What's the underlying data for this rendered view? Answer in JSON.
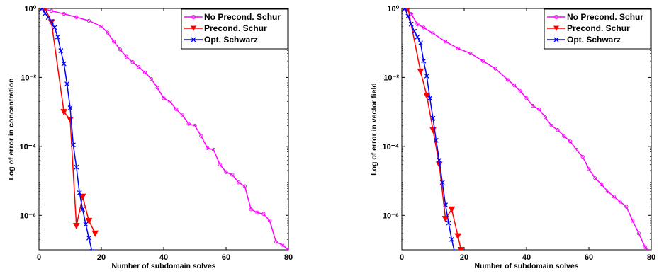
{
  "chart_data": [
    {
      "type": "line",
      "y_scale": "log",
      "xlim": [
        0,
        80
      ],
      "ylim": [
        1e-07,
        1
      ],
      "x_ticks": [
        0,
        20,
        40,
        60,
        80
      ],
      "y_ticks": [
        1,
        0.01,
        0.0001,
        1e-06
      ],
      "xlabel": "Number of subdomain solves",
      "ylabel": "Log of error in concentration",
      "legend_position": "top-right",
      "grid": false,
      "series": [
        {
          "name": "No Precond. Schur",
          "color": "#ff00ff",
          "marker": "circle",
          "points": [
            [
              1,
              1
            ],
            [
              4,
              0.85
            ],
            [
              8,
              0.7
            ],
            [
              12,
              0.56
            ],
            [
              16,
              0.44
            ],
            [
              20,
              0.3
            ],
            [
              22,
              0.2
            ],
            [
              24,
              0.11
            ],
            [
              26,
              0.065
            ],
            [
              28,
              0.04
            ],
            [
              30,
              0.028
            ],
            [
              32,
              0.02
            ],
            [
              34,
              0.014
            ],
            [
              36,
              0.009
            ],
            [
              38,
              0.005
            ],
            [
              40,
              0.0025
            ],
            [
              42,
              0.002
            ],
            [
              44,
              0.0012
            ],
            [
              46,
              0.0008
            ],
            [
              48,
              0.00045
            ],
            [
              50,
              0.0004
            ],
            [
              52,
              0.0002
            ],
            [
              54,
              9e-05
            ],
            [
              56,
              8e-05
            ],
            [
              58,
              3e-05
            ],
            [
              60,
              1.8e-05
            ],
            [
              62,
              1.5e-05
            ],
            [
              64,
              9e-06
            ],
            [
              66,
              7e-06
            ],
            [
              68,
              1.5e-06
            ],
            [
              70,
              1.2e-06
            ],
            [
              72,
              1.1e-06
            ],
            [
              74,
              7e-07
            ],
            [
              76,
              1.7e-07
            ],
            [
              78,
              1.4e-07
            ],
            [
              80,
              1e-07
            ]
          ]
        },
        {
          "name": "Precond. Schur",
          "color": "#ff0000",
          "marker": "triangle-down",
          "points": [
            [
              2,
              1
            ],
            [
              4,
              0.4
            ],
            [
              8,
              0.001
            ],
            [
              10,
              0.0006
            ],
            [
              12,
              5e-07
            ],
            [
              14,
              3.5e-06
            ],
            [
              16,
              7e-07
            ],
            [
              18,
              3e-07
            ]
          ]
        },
        {
          "name": "Opt. Schwarz",
          "color": "#0000ff",
          "marker": "x",
          "points": [
            [
              1,
              1
            ],
            [
              2,
              0.72
            ],
            [
              3,
              0.55
            ],
            [
              4,
              0.42
            ],
            [
              5,
              0.28
            ],
            [
              6,
              0.15
            ],
            [
              7,
              0.06
            ],
            [
              8,
              0.025
            ],
            [
              9,
              0.0065
            ],
            [
              10,
              0.0013
            ],
            [
              11,
              0.00011
            ],
            [
              12,
              2.5e-05
            ],
            [
              13,
              4.5e-06
            ],
            [
              14,
              1.5e-06
            ],
            [
              15,
              5.5e-07
            ],
            [
              16,
              2.2e-07
            ],
            [
              17,
              9e-08
            ]
          ]
        }
      ]
    },
    {
      "type": "line",
      "y_scale": "log",
      "xlim": [
        0,
        80
      ],
      "ylim": [
        1e-07,
        1
      ],
      "x_ticks": [
        0,
        20,
        40,
        60,
        80
      ],
      "y_ticks": [
        1,
        0.01,
        0.0001,
        1e-06
      ],
      "xlabel": "Number of subdomain solves",
      "ylabel": "Log of error in vector field",
      "legend_position": "top-right",
      "grid": false,
      "series": [
        {
          "name": "No Precond. Schur",
          "color": "#ff00ff",
          "marker": "circle",
          "points": [
            [
              1,
              1
            ],
            [
              3,
              0.7
            ],
            [
              5,
              0.35
            ],
            [
              7,
              0.28
            ],
            [
              10,
              0.19
            ],
            [
              14,
              0.11
            ],
            [
              18,
              0.07
            ],
            [
              22,
              0.05
            ],
            [
              26,
              0.03
            ],
            [
              30,
              0.018
            ],
            [
              34,
              0.0085
            ],
            [
              36,
              0.006
            ],
            [
              38,
              0.004
            ],
            [
              40,
              0.0025
            ],
            [
              42,
              0.0015
            ],
            [
              44,
              0.0012
            ],
            [
              46,
              0.0007
            ],
            [
              48,
              0.0004
            ],
            [
              50,
              0.0003
            ],
            [
              52,
              0.0002
            ],
            [
              54,
              0.00014
            ],
            [
              56,
              8e-05
            ],
            [
              58,
              5e-05
            ],
            [
              60,
              2.2e-05
            ],
            [
              62,
              1.2e-05
            ],
            [
              64,
              8e-06
            ],
            [
              66,
              5e-06
            ],
            [
              68,
              3.5e-06
            ],
            [
              70,
              2.5e-06
            ],
            [
              72,
              1.8e-06
            ],
            [
              74,
              7e-07
            ],
            [
              76,
              3e-07
            ],
            [
              78,
              1.2e-07
            ],
            [
              80,
              8e-08
            ]
          ]
        },
        {
          "name": "Precond. Schur",
          "color": "#ff0000",
          "marker": "triangle-down",
          "points": [
            [
              2,
              1
            ],
            [
              6,
              0.015
            ],
            [
              8,
              0.003
            ],
            [
              10,
              0.0003
            ],
            [
              12,
              3e-05
            ],
            [
              14,
              8e-07
            ],
            [
              16,
              1.5e-06
            ],
            [
              18,
              2.5e-07
            ],
            [
              19,
              1e-07
            ]
          ]
        },
        {
          "name": "Opt. Schwarz",
          "color": "#0000ff",
          "marker": "x",
          "points": [
            [
              1,
              1
            ],
            [
              2,
              0.6
            ],
            [
              3,
              0.35
            ],
            [
              4,
              0.22
            ],
            [
              5,
              0.15
            ],
            [
              6,
              0.1
            ],
            [
              7,
              0.03
            ],
            [
              8,
              0.011
            ],
            [
              9,
              0.0025
            ],
            [
              10,
              0.00065
            ],
            [
              11,
              0.00015
            ],
            [
              12,
              4e-05
            ],
            [
              13,
              9e-06
            ],
            [
              14,
              2e-06
            ],
            [
              15,
              6e-07
            ],
            [
              16,
              2e-07
            ],
            [
              17,
              8e-08
            ]
          ]
        }
      ]
    }
  ]
}
